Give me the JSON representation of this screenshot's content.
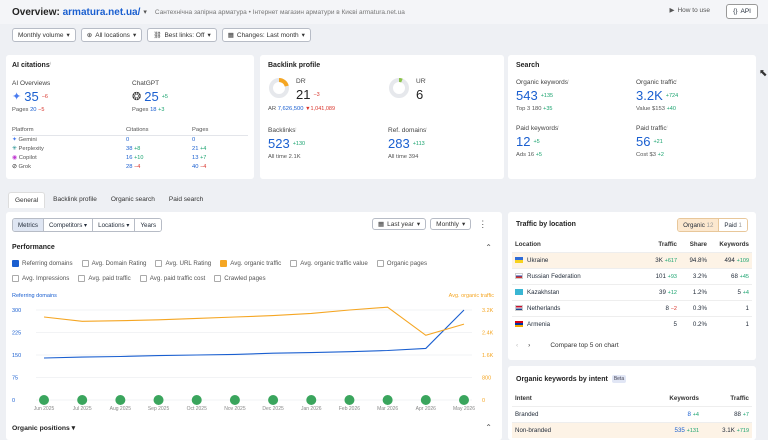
{
  "header": {
    "title_prefix": "Overview: ",
    "domain": "armatura.net.ua/",
    "subtitle": "Сантехнічна запірна арматура • Інтернет магазин арматури в Києві armatura.net.ua",
    "how_to_use": "How to use",
    "api_label": "API"
  },
  "filters": [
    "Monthly volume",
    "All locations",
    "Best links: Off",
    "Changes: Last month"
  ],
  "ai_citations": {
    "title": "AI citations",
    "ai_overviews": {
      "label": "AI Overviews",
      "value": "35",
      "change": "−6",
      "pages_label": "Pages",
      "pages": "20",
      "pages_change": "−5"
    },
    "chatgpt": {
      "label": "ChatGPT",
      "value": "25",
      "change": "+5",
      "pages_label": "Pages",
      "pages": "18",
      "pages_change": "+3"
    },
    "table_headers": [
      "Platform",
      "Citations",
      "Pages"
    ],
    "rows": [
      {
        "platform": "Gemini",
        "citations": "0",
        "citations_change": "",
        "pages": "0",
        "pages_change": ""
      },
      {
        "platform": "Perplexity",
        "citations": "38",
        "citations_change": "+8",
        "pages": "21",
        "pages_change": "+4"
      },
      {
        "platform": "Copilot",
        "citations": "16",
        "citations_change": "+10",
        "pages": "13",
        "pages_change": "+7"
      },
      {
        "platform": "Grok",
        "citations": "28",
        "citations_change": "−4",
        "pages": "40",
        "pages_change": "−4"
      }
    ]
  },
  "backlink_profile": {
    "title": "Backlink profile",
    "dr": {
      "label": "DR",
      "value": "21",
      "change": "−3",
      "ar_label": "AR",
      "ar": "7,626,500",
      "ar_change": "▼1,041,089"
    },
    "ur": {
      "label": "UR",
      "value": "6"
    },
    "backlinks": {
      "label": "Backlinks",
      "value": "523",
      "change": "+130",
      "all_time_label": "All time",
      "all_time": "2.1K"
    },
    "ref_domains": {
      "label": "Ref. domains",
      "value": "283",
      "change": "+113",
      "all_time_label": "All time",
      "all_time": "394"
    }
  },
  "search": {
    "title": "Search",
    "organic_keywords": {
      "label": "Organic keywords",
      "value": "543",
      "change": "+135",
      "sub_label": "Top 3",
      "sub": "180",
      "sub_change": "+35"
    },
    "organic_traffic": {
      "label": "Organic traffic",
      "value": "3.2K",
      "change": "+724",
      "sub_label": "Value",
      "sub": "$153",
      "sub_change": "+40"
    },
    "paid_keywords": {
      "label": "Paid keywords",
      "value": "12",
      "change": "+5",
      "sub_label": "Ads",
      "sub": "16",
      "sub_change": "+5"
    },
    "paid_traffic": {
      "label": "Paid traffic",
      "value": "56",
      "change": "+21",
      "sub_label": "Cost",
      "sub": "$3",
      "sub_change": "+2"
    }
  },
  "tabs": [
    "General",
    "Backlink profile",
    "Organic search",
    "Paid search"
  ],
  "performance": {
    "segmented": [
      "Metrics",
      "Competitors",
      "Locations",
      "Years"
    ],
    "period": "Last year",
    "granularity": "Monthly",
    "title": "Performance",
    "checkboxes": [
      {
        "label": "Referring domains",
        "checked": true,
        "color": "#1a5fd0"
      },
      {
        "label": "Avg. Domain Rating",
        "checked": false
      },
      {
        "label": "Avg. URL Rating",
        "checked": false
      },
      {
        "label": "Avg. organic traffic",
        "checked": true,
        "color": "#f5a623"
      },
      {
        "label": "Avg. organic traffic value",
        "checked": false
      },
      {
        "label": "Organic pages",
        "checked": false
      },
      {
        "label": "Avg. Impressions",
        "checked": false
      },
      {
        "label": "Avg. paid traffic",
        "checked": false
      },
      {
        "label": "Avg. paid traffic cost",
        "checked": false
      },
      {
        "label": "Crawled pages",
        "checked": false
      }
    ],
    "left_axis_title": "Referring domains",
    "right_axis_title": "Avg. organic traffic",
    "organic_positions": "Organic positions"
  },
  "chart_data": {
    "type": "line",
    "x": [
      "Jun 2025",
      "Jul 2025",
      "Aug 2025",
      "Sep 2025",
      "Oct 2025",
      "Nov 2025",
      "Dec 2025",
      "Jan 2026",
      "Feb 2026",
      "Mar 2026",
      "Apr 2026",
      "May 2026"
    ],
    "y_left_ticks": [
      "300",
      "225",
      "150",
      "75",
      "0"
    ],
    "y_right_ticks": [
      "3.2K",
      "2.4K",
      "1.6K",
      "800",
      "0"
    ],
    "ylim_left": [
      0,
      300
    ],
    "ylim_right": [
      0,
      3200
    ],
    "series": [
      {
        "name": "Referring domains",
        "axis": "left",
        "color": "#1a5fd0",
        "values": [
          140,
          143,
          145,
          148,
          150,
          152,
          156,
          158,
          161,
          165,
          172,
          300
        ]
      },
      {
        "name": "Avg. organic traffic",
        "axis": "right",
        "color": "#f5a623",
        "values": [
          2950,
          2800,
          2820,
          2850,
          2900,
          2950,
          3000,
          3080,
          3200,
          3300,
          2300,
          2700
        ]
      }
    ],
    "grid": true
  },
  "traffic_by_location": {
    "title": "Traffic by location",
    "toggle": [
      {
        "label": "Organic",
        "count": "12"
      },
      {
        "label": "Paid",
        "count": "1"
      }
    ],
    "headers": [
      "Location",
      "Traffic",
      "Share",
      "Keywords"
    ],
    "rows": [
      {
        "flag": "ua",
        "name": "Ukraine",
        "traffic": "3K",
        "traffic_change": "+617",
        "share": "94.8%",
        "keywords": "494",
        "keywords_change": "+109"
      },
      {
        "flag": "ru",
        "name": "Russian Federation",
        "traffic": "101",
        "traffic_change": "+93",
        "share": "3.2%",
        "keywords": "68",
        "keywords_change": "+45"
      },
      {
        "flag": "kz",
        "name": "Kazakhstan",
        "traffic": "39",
        "traffic_change": "+12",
        "share": "1.2%",
        "keywords": "5",
        "keywords_change": "+4"
      },
      {
        "flag": "nl",
        "name": "Netherlands",
        "traffic": "8",
        "traffic_change": "−2",
        "share": "0.3%",
        "keywords": "1",
        "keywords_change": ""
      },
      {
        "flag": "am",
        "name": "Armenia",
        "traffic": "5",
        "traffic_change": "",
        "share": "0.2%",
        "keywords": "1",
        "keywords_change": ""
      }
    ],
    "compare_label": "Compare top 5 on chart"
  },
  "keywords_by_intent": {
    "title": "Organic keywords by intent",
    "badge": "Beta",
    "headers": [
      "Intent",
      "Keywords",
      "Traffic"
    ],
    "rows": [
      {
        "intent": "Branded",
        "keywords": "8",
        "keywords_change": "+4",
        "traffic": "88",
        "traffic_change": "+7"
      },
      {
        "intent": "Non-branded",
        "keywords": "535",
        "keywords_change": "+131",
        "traffic": "3.1K",
        "traffic_change": "+719"
      }
    ]
  },
  "colors": {
    "accent": "#1a5fd0",
    "orange": "#f5a623",
    "positive": "#1aa36f",
    "negative": "#d9342b"
  }
}
